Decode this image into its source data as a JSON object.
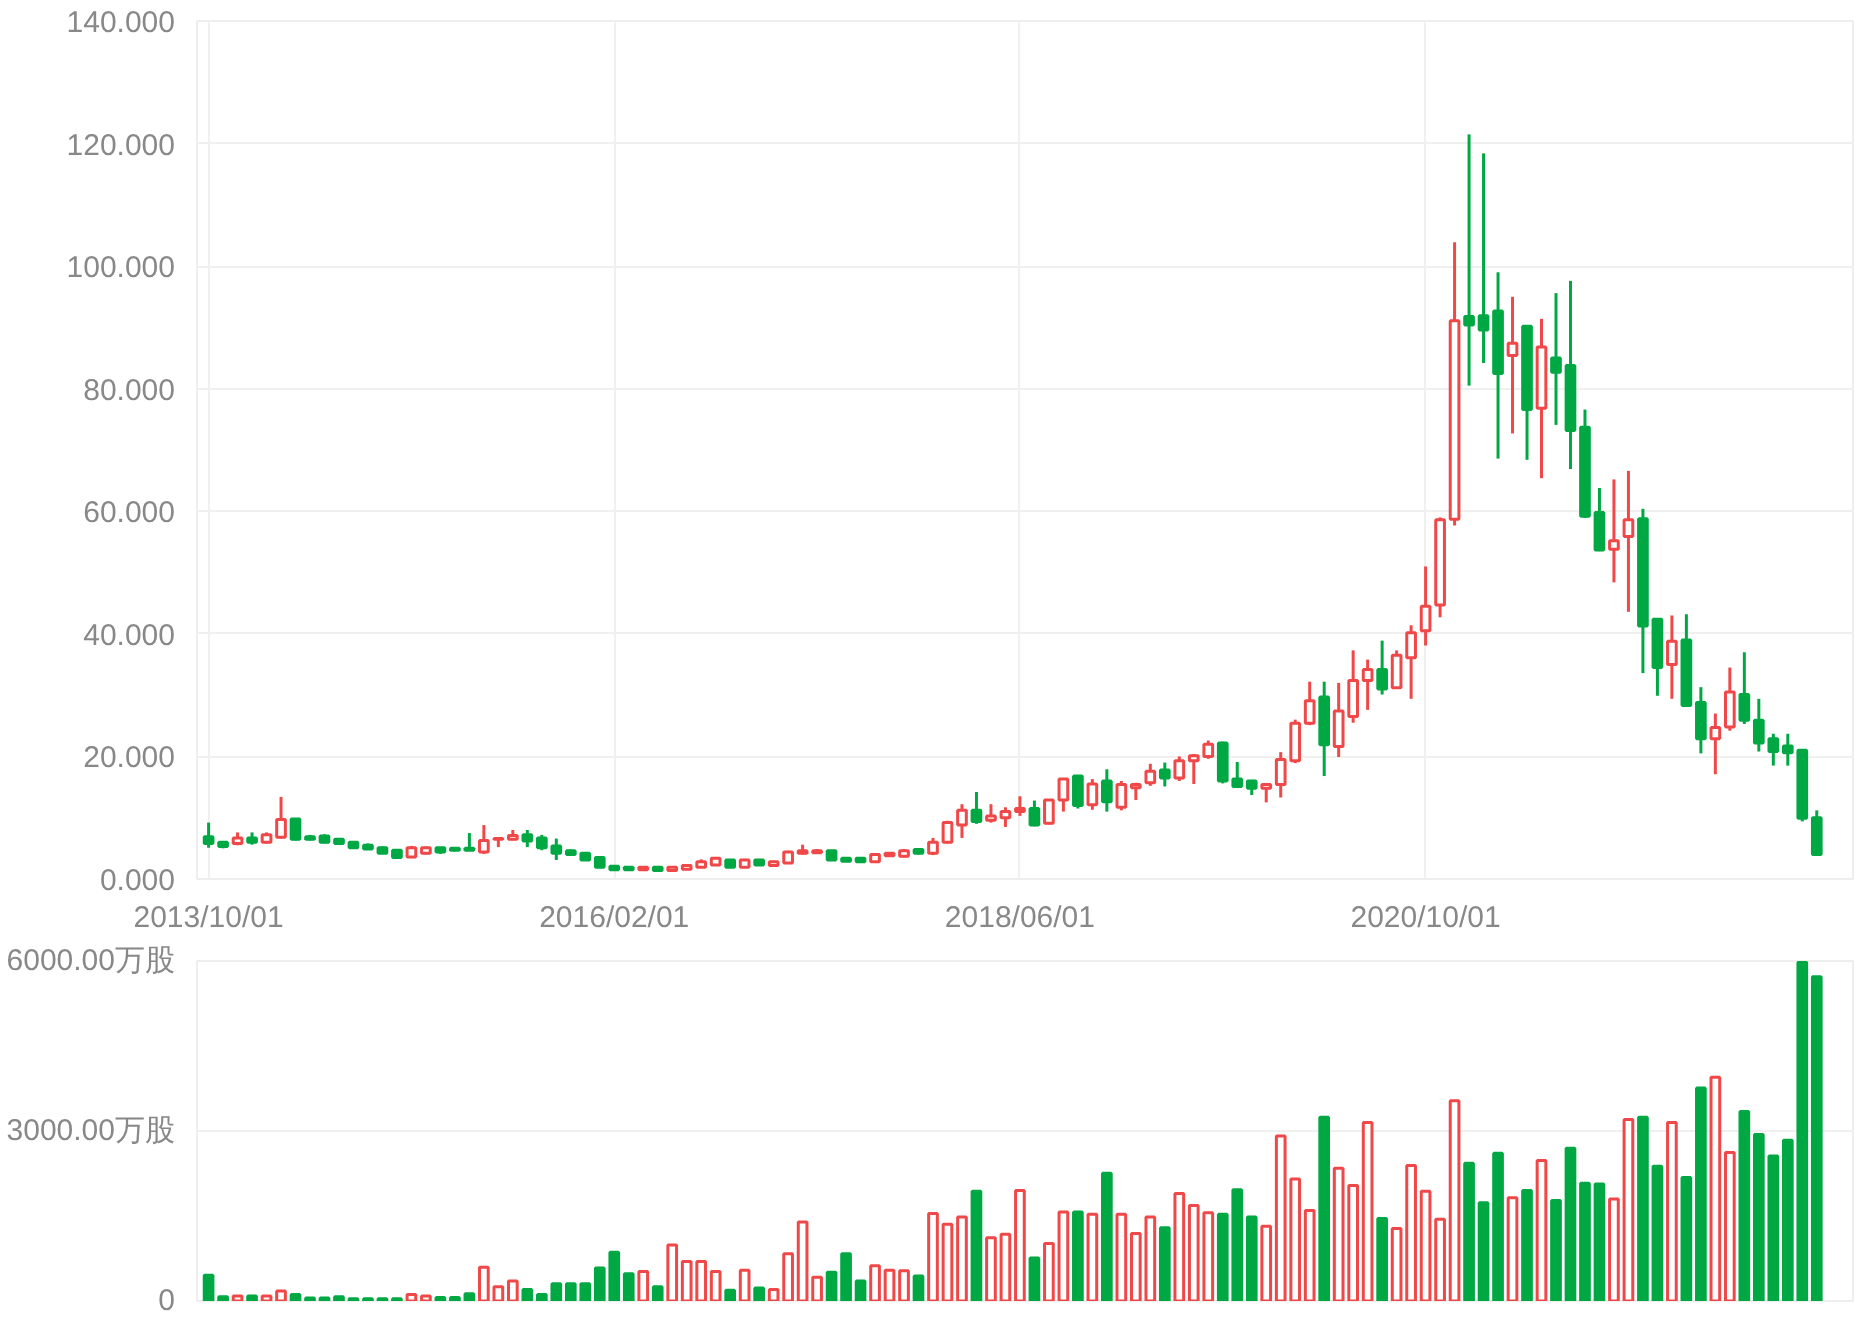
{
  "chart_data": [
    {
      "type": "candlestick",
      "categories": [
        "2013/10/01",
        null,
        null,
        null,
        null,
        null,
        null,
        null,
        null,
        null,
        null,
        null,
        null,
        null,
        null,
        null,
        null,
        null,
        null,
        null,
        null,
        null,
        null,
        null,
        null,
        null,
        null,
        null,
        "2016/02/01",
        null,
        null,
        null,
        null,
        null,
        null,
        null,
        null,
        null,
        null,
        null,
        null,
        null,
        null,
        null,
        null,
        null,
        null,
        null,
        null,
        null,
        null,
        null,
        null,
        null,
        null,
        null,
        "2018/06/01",
        null,
        null,
        null,
        null,
        null,
        null,
        null,
        null,
        null,
        null,
        null,
        null,
        null,
        null,
        null,
        null,
        null,
        null,
        null,
        null,
        null,
        null,
        null,
        null,
        null,
        null,
        null,
        "2020/10/01",
        null,
        null,
        null,
        null,
        null,
        null,
        null,
        null,
        null,
        null,
        null,
        null,
        null,
        null,
        null,
        null,
        null,
        null,
        null,
        null,
        null,
        null,
        null,
        null,
        null,
        null,
        null
      ],
      "ohlc": [
        [
          6.9,
          9.2,
          5.1,
          5.8
        ],
        [
          6.0,
          6.2,
          5.0,
          5.3
        ],
        [
          5.8,
          7.6,
          5.5,
          6.7
        ],
        [
          6.7,
          7.6,
          5.6,
          6.0
        ],
        [
          6.0,
          7.6,
          5.8,
          7.2
        ],
        [
          6.8,
          13.4,
          6.6,
          9.7
        ],
        [
          9.8,
          9.8,
          6.3,
          6.5
        ],
        [
          6.9,
          7.2,
          6.3,
          6.5
        ],
        [
          7.0,
          7.3,
          5.8,
          6.0
        ],
        [
          6.5,
          6.6,
          5.6,
          5.8
        ],
        [
          6.0,
          6.1,
          5.0,
          5.1
        ],
        [
          5.5,
          5.8,
          4.8,
          4.9
        ],
        [
          5.1,
          5.3,
          4.1,
          4.2
        ],
        [
          4.7,
          4.8,
          3.4,
          3.5
        ],
        [
          3.6,
          5.4,
          3.4,
          5.1
        ],
        [
          4.2,
          5.3,
          4.0,
          5.1
        ],
        [
          5.1,
          5.2,
          4.1,
          4.4
        ],
        [
          5.0,
          5.1,
          4.5,
          4.7
        ],
        [
          5.0,
          7.5,
          4.6,
          4.7
        ],
        [
          4.4,
          8.8,
          4.1,
          6.3
        ],
        [
          6.5,
          6.7,
          5.2,
          6.6
        ],
        [
          6.5,
          8.0,
          6.3,
          7.1
        ],
        [
          7.2,
          8.0,
          5.2,
          6.2
        ],
        [
          6.7,
          7.2,
          4.7,
          5.1
        ],
        [
          5.4,
          6.6,
          3.1,
          4.2
        ],
        [
          4.6,
          4.8,
          3.8,
          4.0
        ],
        [
          4.2,
          4.3,
          3.0,
          3.1
        ],
        [
          3.5,
          3.6,
          1.8,
          1.9
        ],
        [
          2.1,
          2.2,
          1.3,
          1.5
        ],
        [
          1.9,
          2.0,
          1.4,
          1.5
        ],
        [
          1.5,
          2.0,
          1.4,
          1.9
        ],
        [
          1.9,
          2.0,
          1.3,
          1.4
        ],
        [
          1.4,
          2.1,
          1.2,
          1.9
        ],
        [
          1.6,
          2.4,
          1.5,
          2.2
        ],
        [
          1.9,
          3.2,
          1.8,
          2.8
        ],
        [
          2.3,
          3.6,
          2.2,
          3.4
        ],
        [
          3.1,
          3.2,
          1.8,
          1.9
        ],
        [
          1.9,
          3.3,
          1.8,
          3.1
        ],
        [
          3.1,
          3.2,
          2.2,
          2.3
        ],
        [
          2.2,
          3.0,
          2.0,
          2.8
        ],
        [
          2.6,
          4.6,
          2.5,
          4.4
        ],
        [
          4.2,
          5.6,
          4.0,
          4.6
        ],
        [
          4.3,
          4.9,
          4.1,
          4.6
        ],
        [
          4.6,
          4.7,
          3.0,
          3.1
        ],
        [
          3.4,
          3.5,
          2.8,
          2.9
        ],
        [
          3.4,
          3.5,
          2.7,
          2.8
        ],
        [
          2.8,
          4.2,
          2.7,
          4.0
        ],
        [
          3.8,
          4.4,
          3.6,
          4.2
        ],
        [
          3.7,
          4.9,
          3.5,
          4.6
        ],
        [
          4.8,
          5.0,
          4.0,
          4.2
        ],
        [
          4.2,
          6.7,
          3.9,
          6.0
        ],
        [
          6.0,
          9.5,
          5.8,
          9.2
        ],
        [
          8.8,
          12.2,
          6.7,
          11.2
        ],
        [
          11.2,
          14.2,
          9.0,
          9.4
        ],
        [
          9.6,
          12.2,
          9.2,
          10.3
        ],
        [
          10.0,
          11.7,
          8.5,
          11.0
        ],
        [
          11.0,
          13.5,
          10.3,
          11.5
        ],
        [
          11.5,
          12.8,
          8.6,
          8.8
        ],
        [
          9.1,
          13.0,
          8.9,
          12.9
        ],
        [
          12.9,
          16.4,
          11.0,
          16.3
        ],
        [
          16.8,
          16.9,
          11.5,
          12.0
        ],
        [
          12.1,
          16.3,
          11.3,
          15.5
        ],
        [
          16.0,
          17.9,
          11.0,
          12.6
        ],
        [
          11.7,
          16.0,
          11.2,
          15.4
        ],
        [
          14.9,
          15.7,
          12.9,
          15.4
        ],
        [
          15.7,
          18.8,
          15.2,
          17.6
        ],
        [
          17.8,
          19.0,
          15.1,
          16.5
        ],
        [
          16.5,
          20.0,
          16.0,
          19.3
        ],
        [
          19.3,
          20.4,
          15.5,
          20.1
        ],
        [
          20.0,
          22.6,
          19.6,
          22.0
        ],
        [
          22.2,
          22.4,
          15.6,
          16.0
        ],
        [
          16.3,
          19.1,
          15.0,
          15.1
        ],
        [
          16.0,
          16.1,
          13.7,
          14.8
        ],
        [
          14.8,
          15.6,
          12.5,
          15.4
        ],
        [
          15.4,
          20.7,
          13.3,
          19.5
        ],
        [
          19.3,
          26.0,
          18.9,
          25.4
        ],
        [
          25.4,
          32.2,
          25.1,
          29.1
        ],
        [
          29.7,
          32.2,
          16.8,
          21.9
        ],
        [
          21.6,
          32.0,
          19.9,
          27.4
        ],
        [
          26.5,
          37.3,
          25.5,
          32.4
        ],
        [
          32.4,
          35.8,
          27.6,
          34.2
        ],
        [
          34.2,
          38.9,
          30.1,
          31.0
        ],
        [
          31.2,
          37.3,
          31.0,
          36.5
        ],
        [
          36.1,
          41.4,
          29.4,
          40.2
        ],
        [
          40.5,
          51.0,
          38.1,
          44.5
        ],
        [
          44.7,
          59.0,
          42.7,
          58.6
        ],
        [
          58.7,
          103.9,
          57.7,
          91.1
        ],
        [
          91.8,
          121.5,
          80.5,
          90.4
        ],
        [
          91.9,
          118.4,
          84.2,
          89.6
        ],
        [
          92.7,
          99.0,
          68.6,
          82.5
        ],
        [
          85.4,
          95.0,
          72.7,
          87.4
        ],
        [
          90.2,
          90.2,
          68.4,
          76.6
        ],
        [
          76.8,
          91.4,
          65.4,
          86.8
        ],
        [
          85.0,
          95.6,
          74.1,
          82.7
        ],
        [
          83.8,
          97.6,
          66.9,
          73.2
        ],
        [
          73.7,
          76.6,
          58.9,
          59.2
        ],
        [
          59.8,
          63.8,
          53.5,
          53.7
        ],
        [
          53.8,
          65.2,
          48.4,
          55.2
        ],
        [
          55.9,
          66.6,
          43.6,
          58.6
        ],
        [
          58.8,
          60.4,
          33.6,
          41.3
        ],
        [
          42.4,
          42.5,
          29.9,
          34.5
        ],
        [
          35.0,
          43.0,
          29.4,
          38.8
        ],
        [
          39.0,
          43.2,
          28.1,
          28.3
        ],
        [
          28.8,
          31.3,
          20.5,
          22.9
        ],
        [
          22.9,
          27.0,
          17.1,
          24.7
        ],
        [
          24.8,
          34.5,
          24.2,
          30.5
        ],
        [
          30.1,
          37.0,
          25.3,
          25.9
        ],
        [
          25.9,
          29.4,
          20.8,
          22.2
        ],
        [
          22.9,
          23.7,
          18.5,
          20.8
        ],
        [
          21.7,
          23.7,
          18.5,
          20.6
        ],
        [
          21.0,
          21.2,
          9.4,
          9.9
        ],
        [
          10.0,
          11.2,
          4.0,
          4.0
        ]
      ],
      "ylim": [
        0,
        140
      ],
      "yticks": [
        {
          "value": 0,
          "label": "0.000"
        },
        {
          "value": 20,
          "label": "20.000"
        },
        {
          "value": 40,
          "label": "40.000"
        },
        {
          "value": 60,
          "label": "60.000"
        },
        {
          "value": 80,
          "label": "80.000"
        },
        {
          "value": 100,
          "label": "100.000"
        },
        {
          "value": 120,
          "label": "120.000"
        },
        {
          "value": 140,
          "label": "140.000"
        }
      ],
      "grid": true
    },
    {
      "type": "bar",
      "categories": [
        null,
        null,
        null,
        null,
        null,
        null,
        null,
        null,
        null,
        null,
        null,
        null,
        null,
        null,
        null,
        null,
        null,
        null,
        null,
        null,
        null,
        null,
        null,
        null,
        null,
        null,
        null,
        null,
        null,
        null,
        null,
        null,
        null,
        null,
        null,
        null,
        null,
        null,
        null,
        null,
        null,
        null,
        null,
        null,
        null,
        null,
        null,
        null,
        null,
        null,
        null,
        null,
        null,
        null,
        null,
        null,
        null,
        null,
        null,
        null,
        null,
        null,
        null,
        null,
        null,
        null,
        null,
        null,
        null,
        null,
        null,
        null,
        null,
        null,
        null,
        null,
        null,
        null,
        null,
        null,
        null,
        null,
        null,
        null,
        null,
        null,
        null,
        null,
        null,
        null,
        null,
        null,
        null,
        null,
        null,
        null,
        null,
        null,
        null,
        null,
        null,
        null,
        null,
        null,
        null,
        null,
        null,
        null,
        null,
        null,
        null,
        null
      ],
      "values": [
        456,
        76,
        89,
        89,
        89,
        177,
        114,
        51,
        51,
        76,
        38,
        38,
        38,
        38,
        114,
        89,
        63,
        63,
        127,
        595,
        253,
        354,
        203,
        114,
        304,
        304,
        304,
        582,
        861,
        481,
        519,
        253,
        987,
        696,
        696,
        519,
        190,
        544,
        228,
        203,
        836,
        1393,
        418,
        506,
        836,
        354,
        620,
        544,
        532,
        443,
        1545,
        1355,
        1481,
        1937,
        1114,
        1177,
        1950,
        760,
        1013,
        1570,
        1570,
        1532,
        2253,
        1532,
        1190,
        1481,
        1291,
        1899,
        1684,
        1557,
        1532,
        1962,
        1481,
        1317,
        2912,
        2152,
        1595,
        3241,
        2342,
        2038,
        3152,
        1456,
        1279,
        2393,
        1937,
        1443,
        3532,
        2431,
        1734,
        2608,
        1823,
        1950,
        2481,
        1772,
        2697,
        2076,
        2064,
        1798,
        3203,
        3241,
        2380,
        3152,
        2178,
        3760,
        3950,
        2621,
        3342,
        2937,
        2557,
        2836,
        5980,
        5722
      ],
      "colors": [
        "#00a843",
        "#00a843",
        "#f04848",
        "#00a843",
        "#f04848",
        "#f04848",
        "#00a843",
        "#00a843",
        "#00a843",
        "#00a843",
        "#00a843",
        "#00a843",
        "#00a843",
        "#00a843",
        "#f04848",
        "#f04848",
        "#00a843",
        "#00a843",
        "#00a843",
        "#f04848",
        "#f04848",
        "#f04848",
        "#00a843",
        "#00a843",
        "#00a843",
        "#00a843",
        "#00a843",
        "#00a843",
        "#00a843",
        "#00a843",
        "#f04848",
        "#00a843",
        "#f04848",
        "#f04848",
        "#f04848",
        "#f04848",
        "#00a843",
        "#f04848",
        "#00a843",
        "#f04848",
        "#f04848",
        "#f04848",
        "#f04848",
        "#00a843",
        "#00a843",
        "#00a843",
        "#f04848",
        "#f04848",
        "#f04848",
        "#00a843",
        "#f04848",
        "#f04848",
        "#f04848",
        "#00a843",
        "#f04848",
        "#f04848",
        "#f04848",
        "#00a843",
        "#f04848",
        "#f04848",
        "#00a843",
        "#f04848",
        "#00a843",
        "#f04848",
        "#f04848",
        "#f04848",
        "#00a843",
        "#f04848",
        "#f04848",
        "#f04848",
        "#00a843",
        "#00a843",
        "#00a843",
        "#f04848",
        "#f04848",
        "#f04848",
        "#f04848",
        "#00a843",
        "#f04848",
        "#f04848",
        "#f04848",
        "#00a843",
        "#f04848",
        "#f04848",
        "#f04848",
        "#f04848",
        "#f04848",
        "#00a843",
        "#00a843",
        "#00a843",
        "#f04848",
        "#00a843",
        "#f04848",
        "#00a843",
        "#00a843",
        "#00a843",
        "#00a843",
        "#f04848",
        "#f04848",
        "#00a843",
        "#00a843",
        "#f04848",
        "#00a843",
        "#00a843",
        "#f04848",
        "#f04848",
        "#00a843",
        "#00a843",
        "#00a843",
        "#00a843",
        "#00a843",
        "#00a843"
      ],
      "ylim": [
        0,
        6000
      ],
      "yticks": [
        0,
        {
          "value": 3000,
          "label": "3000.00万股"
        },
        {
          "value": 6000,
          "label": "6000.00万股"
        }
      ],
      "grid": true
    }
  ]
}
